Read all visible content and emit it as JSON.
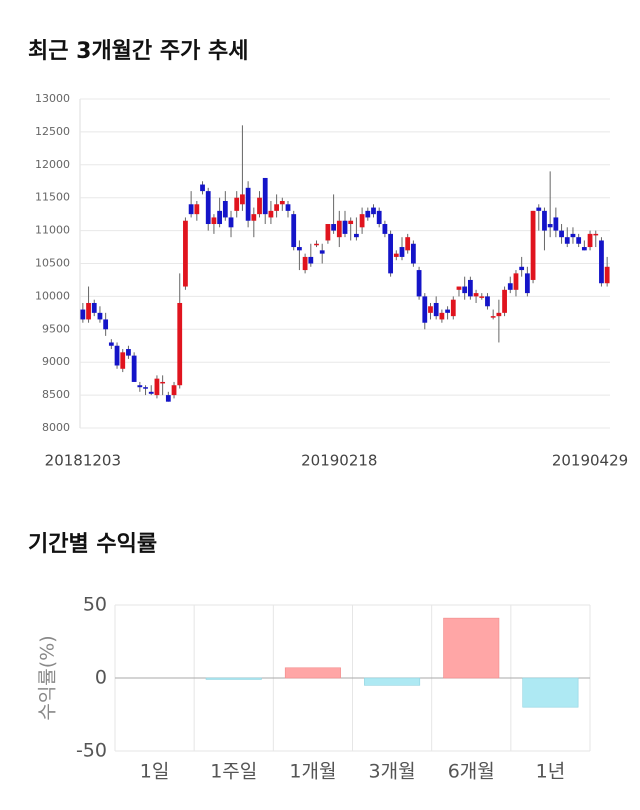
{
  "chart_data": [
    {
      "type": "candlestick",
      "title": "최근 3개월간 주가 추세",
      "categories": [
        "20181203",
        null,
        null,
        null,
        null,
        null,
        null,
        null,
        null,
        null,
        null,
        null,
        null,
        null,
        null,
        null,
        null,
        null,
        null,
        null,
        null,
        null,
        null,
        null,
        null,
        null,
        null,
        null,
        null,
        null,
        null,
        null,
        null,
        null,
        null,
        null,
        null,
        null,
        null,
        null,
        null,
        null,
        null,
        null,
        null,
        "20190218",
        null,
        null,
        null,
        null,
        null,
        null,
        null,
        null,
        null,
        null,
        null,
        null,
        null,
        null,
        null,
        null,
        null,
        null,
        null,
        null,
        null,
        null,
        null,
        null,
        null,
        null,
        null,
        null,
        null,
        null,
        null,
        null,
        null,
        null,
        null,
        null,
        null,
        null,
        null,
        null,
        null,
        null,
        null,
        null,
        null,
        null,
        "20190429"
      ],
      "open": [
        9800,
        9650,
        9900,
        9750,
        9650,
        9300,
        9250,
        8900,
        9200,
        9100,
        8650,
        8620,
        8550,
        8500,
        8700,
        8500,
        8500,
        8650,
        10150,
        11400,
        11250,
        11700,
        11600,
        11100,
        11300,
        11450,
        11200,
        11300,
        11400,
        11650,
        11150,
        11250,
        11800,
        11200,
        11300,
        11400,
        11400,
        11250,
        10750,
        10400,
        10600,
        10800,
        10700,
        10850,
        11100,
        10900,
        11150,
        11100,
        10950,
        11050,
        11300,
        11350,
        11300,
        11100,
        10950,
        10600,
        10750,
        10700,
        10800,
        10400,
        10000,
        9750,
        9900,
        9650,
        9800,
        9700,
        10100,
        10150,
        10250,
        10000,
        10000,
        10000,
        9700,
        9700,
        9750,
        10200,
        10100,
        10450,
        10350,
        10250,
        11350,
        11300,
        11100,
        11200,
        11000,
        10900,
        10950,
        10900,
        10750,
        10750,
        10950,
        10850,
        10200
      ],
      "high": [
        9900,
        10150,
        9950,
        9850,
        9750,
        9350,
        9300,
        9200,
        9250,
        9150,
        8700,
        8650,
        8650,
        8800,
        8800,
        8550,
        8700,
        10350,
        11200,
        11600,
        11450,
        11750,
        11650,
        11250,
        11500,
        11600,
        11300,
        11600,
        12600,
        11750,
        11350,
        11600,
        11800,
        11450,
        11550,
        11500,
        11450,
        11300,
        10850,
        10650,
        10800,
        10850,
        10800,
        11100,
        11550,
        11300,
        11300,
        11200,
        11200,
        11350,
        11350,
        11400,
        11350,
        11150,
        11000,
        10700,
        10900,
        10950,
        10850,
        10450,
        10050,
        9900,
        10000,
        9800,
        9850,
        10000,
        10150,
        10300,
        10300,
        10100,
        10050,
        10050,
        9800,
        9950,
        10150,
        10300,
        10400,
        10600,
        10450,
        11300,
        11400,
        11350,
        11900,
        11350,
        11100,
        11050,
        11050,
        10950,
        10850,
        11000,
        11000,
        10900,
        10600
      ],
      "low": [
        9600,
        9600,
        9700,
        9600,
        9400,
        9200,
        8900,
        8850,
        9050,
        8700,
        8550,
        8500,
        8500,
        8450,
        8500,
        8400,
        8450,
        8600,
        10100,
        11200,
        11150,
        11550,
        11000,
        10950,
        11050,
        11150,
        10900,
        11200,
        11300,
        11050,
        10900,
        11200,
        11100,
        11100,
        11200,
        11300,
        11200,
        10700,
        10400,
        10350,
        10450,
        10750,
        10500,
        10800,
        10950,
        10750,
        10900,
        10850,
        10850,
        10950,
        11150,
        11200,
        11050,
        10900,
        10300,
        10550,
        10550,
        10650,
        10450,
        9950,
        9500,
        9650,
        9650,
        9600,
        9650,
        9650,
        10000,
        9950,
        9950,
        9900,
        9950,
        9800,
        9650,
        9300,
        9700,
        10050,
        10000,
        10300,
        10000,
        10200,
        11000,
        10700,
        10900,
        10900,
        10800,
        10750,
        10800,
        10750,
        10700,
        10700,
        10750,
        10150,
        10150
      ],
      "close": [
        9650,
        9900,
        9750,
        9650,
        9500,
        9250,
        8950,
        9150,
        9100,
        8700,
        8620,
        8600,
        8520,
        8750,
        8700,
        8400,
        8650,
        9900,
        11150,
        11250,
        11400,
        11600,
        11100,
        11200,
        11100,
        11200,
        11050,
        11500,
        11550,
        11150,
        11250,
        11500,
        11250,
        11300,
        11400,
        11450,
        11300,
        10750,
        10700,
        10600,
        10500,
        10800,
        10650,
        11100,
        11000,
        11150,
        10950,
        11150,
        10900,
        11250,
        11200,
        11250,
        11100,
        10950,
        10350,
        10650,
        10600,
        10900,
        10500,
        10000,
        9600,
        9850,
        9700,
        9750,
        9750,
        9950,
        10150,
        10050,
        10000,
        10050,
        10000,
        9850,
        9700,
        9750,
        10100,
        10100,
        10350,
        10400,
        10050,
        11300,
        11300,
        11000,
        11050,
        11000,
        10900,
        10800,
        10900,
        10800,
        10700,
        10950,
        10950,
        10200,
        10450
      ],
      "up_color": "#e0141e",
      "down_color": "#1414c8",
      "ylim": [
        8000,
        13000
      ],
      "yticks": [
        8000,
        8500,
        9000,
        9500,
        10000,
        10500,
        11000,
        11500,
        12000,
        12500,
        13000
      ],
      "grid": true
    },
    {
      "type": "bar",
      "title": "기간별 수익률",
      "ylabel": "수익률(%)",
      "categories": [
        "1일",
        "1주일",
        "1개월",
        "3개월",
        "6개월",
        "1년"
      ],
      "values": [
        0,
        -1,
        7,
        -5,
        41,
        -20
      ],
      "positive_color": "#ffa6a6",
      "negative_color": "#aee9f3",
      "ylim": [
        -50,
        50
      ],
      "yticks": [
        -50,
        0,
        50
      ],
      "grid": true
    }
  ]
}
